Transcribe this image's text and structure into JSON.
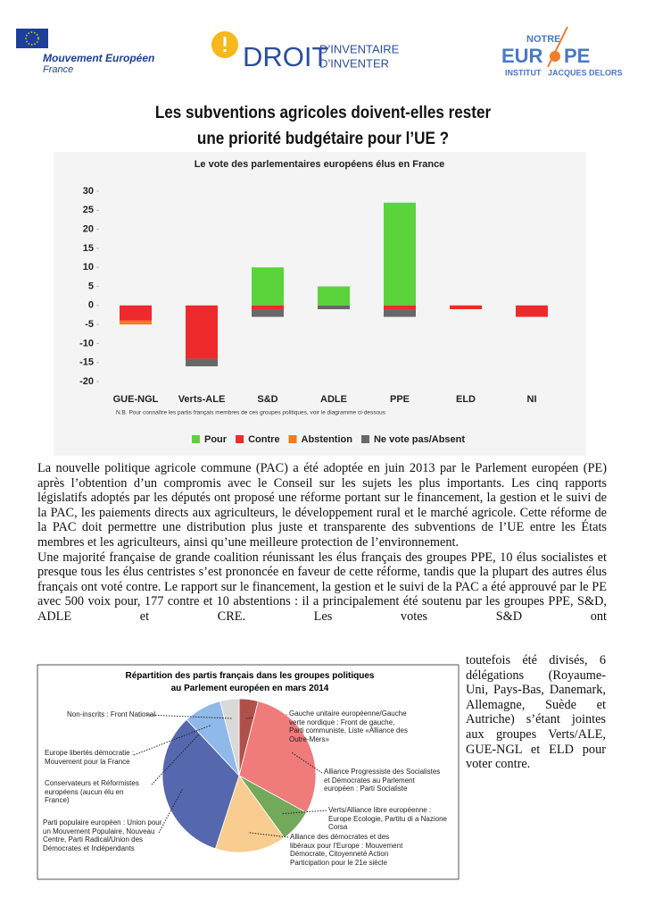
{
  "header": {
    "logo1": {
      "text": "Mouvement Européen",
      "sub": "France"
    },
    "logo2": {
      "word": "DROIT",
      "line1": "D’INVENTAIRE",
      "line2": "D’INVENTER"
    },
    "logo3": {
      "top": "NOTRE",
      "word1": "EUR",
      "word2": "PE",
      "line1": "INSTITUT",
      "line2": "JACQUES DELORS"
    }
  },
  "title": [
    "Les subventions agricoles doivent-elles rester",
    "une priorité budgétaire pour l’UE ?"
  ],
  "paragraphs": [
    "La nouvelle politique agricole commune (PAC) a été adoptée en juin 2013 par le Parlement européen (PE) après l’obtention d’un compromis avec le Conseil sur les sujets les plus importants. Les cinq rapports législatifs adoptés par les députés ont proposé une réforme portant sur le financement, la gestion et le suivi de la PAC, les paiements directs aux agriculteurs, le développement rural et le marché agricole. Cette réforme de la PAC doit permettre une distribution plus juste et transparente des subventions de l’UE entre les États membres et les agriculteurs, ainsi qu’une meilleure protection de l’environnement.",
    "Une majorité française de grande coalition réunissant les élus français des groupes PPE, 10 élus socialistes et presque tous les élus centristes s’est prononcée en faveur de cette réforme, tandis que la plupart des autres élus français ont voté contre. Le rapport sur le financement, la gestion et le suivi de la PAC a été approuvé par le PE avec 500 voix pour, 177 contre et 10 abstentions : il a principalement été soutenu par les groupes PPE, S&D, ADLE et CRE. Les votes S&D ont"
  ],
  "side_text": "toutefois été divisés, 6 délégations (Royaume-Uni, Pays-Bas, Danemark, Allemagne, Suède et Autriche) s’étant jointes aux groupes Verts/ALE, GUE-NGL et ELD pour voter contre.",
  "chart_data": [
    {
      "type": "bar",
      "stacked": true,
      "title": "Le vote des parlementaires européens élus en France",
      "note": "N.B. Pour connaître les partis français membres de ces groupes politiques, voir le diagramme ci-dessous",
      "categories": [
        "GUE-NGL",
        "Verts-ALE",
        "S&D",
        "ADLE",
        "PPE",
        "ELD",
        "NI"
      ],
      "series": [
        {
          "name": "Pour",
          "color": "#5bd33a",
          "values": [
            0,
            0,
            10,
            5,
            27,
            0,
            0
          ]
        },
        {
          "name": "Contre",
          "color": "#ee2a2c",
          "values": [
            -4,
            -14,
            -1,
            0,
            -1,
            -1,
            -3
          ]
        },
        {
          "name": "Abstention",
          "color": "#f47b20",
          "values": [
            -1,
            0,
            0,
            0,
            0,
            0,
            0
          ]
        },
        {
          "name": "Ne vote pas/Absent",
          "color": "#686868",
          "values": [
            0,
            -2,
            -2,
            -1,
            -2,
            0,
            0
          ]
        }
      ],
      "ylim": [
        -20,
        30
      ],
      "yticks": [
        30,
        25,
        20,
        15,
        10,
        5,
        0,
        -5,
        -10,
        -15,
        -20
      ],
      "grid": false,
      "legend": "bottom"
    },
    {
      "type": "pie",
      "title": [
        "Répartition des partis français dans les groupes politiques",
        "au Parlement européen en mars 2014"
      ],
      "categories": [
        "Gauche unitaire européenne/Gauche verte nordique : Front de gauche, Parti communiste, Liste «Alliance des Outre-Mers»",
        "Alliance Progressiste des Socialistes et Démocrates au Parlement européen : Parti Socialiste",
        "Verts/Alliance libre européenne : Europe Ecologie, Partitu di a Nazione Corsa",
        "Alliance des démocrates et des libéraux pour l’Europe : Mouvement Démocrate, Citoyenneté Action Participation pour le 21e siècle",
        "Parti populaire européen : Union pour un Mouvement Populaire, Nouveau Centre, Parti Radical/Union des Démocrates et Indépendants",
        "Conservateurs et Réformistes européens (aucun élu en France)",
        "Europe libertés démocratie : Mouvement pour la France",
        "Non-inscrits : Front National"
      ],
      "values": [
        4,
        29,
        7,
        15,
        33,
        0,
        8,
        4
      ],
      "colors": [
        "#b0504b",
        "#ef7b7b",
        "#72a95a",
        "#f8cd8f",
        "#5568ae",
        "#3b4f8f",
        "#8fb9e9",
        "#d9d9d9"
      ]
    }
  ]
}
